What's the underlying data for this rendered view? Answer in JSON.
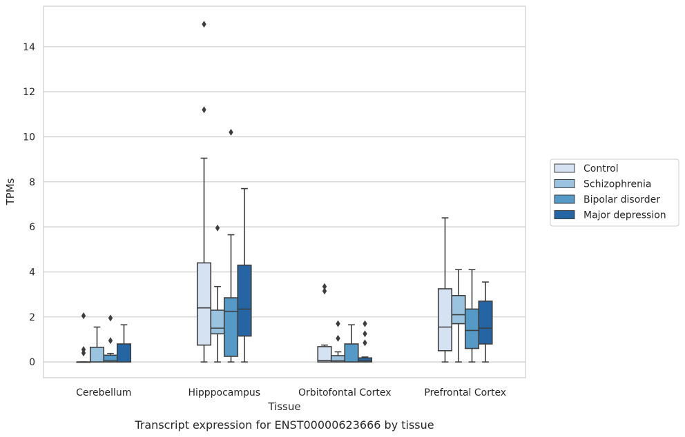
{
  "chart_data": {
    "type": "boxplot",
    "caption": "Transcript expression for ENST00000623666 by tissue",
    "xlabel": "Tissue",
    "ylabel": "TPMs",
    "ylim": [
      -0.7,
      15.8
    ],
    "yticks": [
      0,
      2,
      4,
      6,
      8,
      10,
      12,
      14
    ],
    "grid": "horizontal",
    "legend_position": "right",
    "categories": [
      "Cerebellum",
      "Hipppocampus",
      "Orbitofontal Cortex",
      "Prefrontal Cortex"
    ],
    "series": [
      {
        "name": "Control",
        "color": "#d4e2f1",
        "boxes": [
          {
            "whislo": 0,
            "q1": 0,
            "med": 0,
            "q3": 0,
            "whishi": 0,
            "fliers": [
              0.4,
              0.55,
              2.05
            ]
          },
          {
            "whislo": 0,
            "q1": 0.75,
            "med": 2.4,
            "q3": 4.4,
            "whishi": 9.05,
            "fliers": [
              11.2,
              15.0
            ]
          },
          {
            "whislo": 0,
            "q1": 0,
            "med": 0.07,
            "q3": 0.68,
            "whishi": 0.75,
            "fliers": [
              3.15,
              3.35
            ]
          },
          {
            "whislo": 0,
            "q1": 0.5,
            "med": 1.55,
            "q3": 3.25,
            "whishi": 6.4,
            "fliers": []
          }
        ]
      },
      {
        "name": "Schizophrenia",
        "color": "#9ac3df",
        "boxes": [
          {
            "whislo": 0,
            "q1": 0,
            "med": 0,
            "q3": 0.65,
            "whishi": 1.55,
            "fliers": []
          },
          {
            "whislo": 0,
            "q1": 1.25,
            "med": 1.5,
            "q3": 2.3,
            "whishi": 3.35,
            "fliers": [
              5.95
            ]
          },
          {
            "whislo": 0,
            "q1": 0,
            "med": 0.05,
            "q3": 0.28,
            "whishi": 0.45,
            "fliers": [
              1.05,
              1.7
            ]
          },
          {
            "whislo": 0,
            "q1": 1.7,
            "med": 2.1,
            "q3": 2.95,
            "whishi": 4.1,
            "fliers": []
          }
        ]
      },
      {
        "name": "Bipolar disorder",
        "color": "#5599c6",
        "boxes": [
          {
            "whislo": 0,
            "q1": 0,
            "med": 0.05,
            "q3": 0.3,
            "whishi": 0.38,
            "fliers": [
              0.95,
              1.95
            ]
          },
          {
            "whislo": 0,
            "q1": 0.25,
            "med": 2.25,
            "q3": 2.85,
            "whishi": 5.65,
            "fliers": [
              10.2
            ]
          },
          {
            "whislo": 0,
            "q1": 0,
            "med": 0,
            "q3": 0.8,
            "whishi": 1.65,
            "fliers": []
          },
          {
            "whislo": 0,
            "q1": 0.6,
            "med": 1.4,
            "q3": 2.35,
            "whishi": 4.1,
            "fliers": []
          }
        ]
      },
      {
        "name": "Major depression",
        "color": "#2565a3",
        "boxes": [
          {
            "whislo": 0,
            "q1": 0,
            "med": 0,
            "q3": 0.8,
            "whishi": 1.65,
            "fliers": []
          },
          {
            "whislo": 0,
            "q1": 1.15,
            "med": 2.35,
            "q3": 4.3,
            "whishi": 7.7,
            "fliers": []
          },
          {
            "whislo": 0,
            "q1": 0,
            "med": 0.05,
            "q3": 0.18,
            "whishi": 0.22,
            "fliers": [
              0.85,
              1.25,
              1.7
            ]
          },
          {
            "whislo": 0,
            "q1": 0.8,
            "med": 1.5,
            "q3": 2.7,
            "whishi": 3.55,
            "fliers": []
          }
        ]
      }
    ]
  }
}
